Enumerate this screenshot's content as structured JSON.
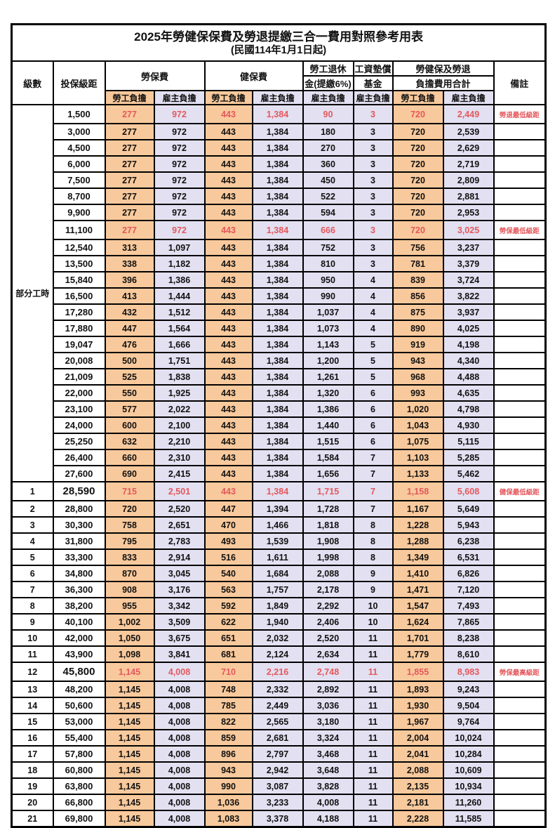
{
  "title": "2025年勞健保保費及勞退提繳三合一費用對照參考用表",
  "subtitle": "(民國114年1月1日起)",
  "header": {
    "level": "級數",
    "bracket": "投保級距",
    "labor_insurance": "勞保費",
    "health_insurance": "健保費",
    "pension_line1": "勞工退休",
    "pension_line2": "金(提繳6%)",
    "wage_fund_line1": "工資墊償",
    "wage_fund_line2": "基金",
    "total_line1": "勞健保及勞退",
    "total_line2": "負擔費用合計",
    "employee_label": "勞工負擔",
    "employer_label": "雇主負擔",
    "remark": "備註"
  },
  "colors": {
    "employee_bg": "#F8C99C",
    "employer_bg": "#E2E0F1",
    "highlight_red": "#E4585C",
    "border": "#000000"
  },
  "part_time_label": "部分工時",
  "part_time_rowspan": 23,
  "rows": [
    {
      "level": "",
      "bracket": "1,500",
      "values": [
        "277",
        "972",
        "443",
        "1,384",
        "90",
        "3",
        "720",
        "2,449"
      ],
      "remark": "勞退最低級距",
      "highlight": true,
      "big": false
    },
    {
      "level": "",
      "bracket": "3,000",
      "values": [
        "277",
        "972",
        "443",
        "1,384",
        "180",
        "3",
        "720",
        "2,539"
      ],
      "remark": "",
      "highlight": false,
      "big": false
    },
    {
      "level": "",
      "bracket": "4,500",
      "values": [
        "277",
        "972",
        "443",
        "1,384",
        "270",
        "3",
        "720",
        "2,629"
      ],
      "remark": "",
      "highlight": false,
      "big": false
    },
    {
      "level": "",
      "bracket": "6,000",
      "values": [
        "277",
        "972",
        "443",
        "1,384",
        "360",
        "3",
        "720",
        "2,719"
      ],
      "remark": "",
      "highlight": false,
      "big": false
    },
    {
      "level": "",
      "bracket": "7,500",
      "values": [
        "277",
        "972",
        "443",
        "1,384",
        "450",
        "3",
        "720",
        "2,809"
      ],
      "remark": "",
      "highlight": false,
      "big": false
    },
    {
      "level": "",
      "bracket": "8,700",
      "values": [
        "277",
        "972",
        "443",
        "1,384",
        "522",
        "3",
        "720",
        "2,881"
      ],
      "remark": "",
      "highlight": false,
      "big": false
    },
    {
      "level": "",
      "bracket": "9,900",
      "values": [
        "277",
        "972",
        "443",
        "1,384",
        "594",
        "3",
        "720",
        "2,953"
      ],
      "remark": "",
      "highlight": false,
      "big": false
    },
    {
      "level": "",
      "bracket": "11,100",
      "values": [
        "277",
        "972",
        "443",
        "1,384",
        "666",
        "3",
        "720",
        "3,025"
      ],
      "remark": "勞保最低級距",
      "highlight": true,
      "big": false
    },
    {
      "level": "",
      "bracket": "12,540",
      "values": [
        "313",
        "1,097",
        "443",
        "1,384",
        "752",
        "3",
        "756",
        "3,237"
      ],
      "remark": "",
      "highlight": false,
      "big": false
    },
    {
      "level": "",
      "bracket": "13,500",
      "values": [
        "338",
        "1,182",
        "443",
        "1,384",
        "810",
        "3",
        "781",
        "3,379"
      ],
      "remark": "",
      "highlight": false,
      "big": false
    },
    {
      "level": "",
      "bracket": "15,840",
      "values": [
        "396",
        "1,386",
        "443",
        "1,384",
        "950",
        "4",
        "839",
        "3,724"
      ],
      "remark": "",
      "highlight": false,
      "big": false
    },
    {
      "level": "",
      "bracket": "16,500",
      "values": [
        "413",
        "1,444",
        "443",
        "1,384",
        "990",
        "4",
        "856",
        "3,822"
      ],
      "remark": "",
      "highlight": false,
      "big": false
    },
    {
      "level": "",
      "bracket": "17,280",
      "values": [
        "432",
        "1,512",
        "443",
        "1,384",
        "1,037",
        "4",
        "875",
        "3,937"
      ],
      "remark": "",
      "highlight": false,
      "big": false
    },
    {
      "level": "",
      "bracket": "17,880",
      "values": [
        "447",
        "1,564",
        "443",
        "1,384",
        "1,073",
        "4",
        "890",
        "4,025"
      ],
      "remark": "",
      "highlight": false,
      "big": false
    },
    {
      "level": "",
      "bracket": "19,047",
      "values": [
        "476",
        "1,666",
        "443",
        "1,384",
        "1,143",
        "5",
        "919",
        "4,198"
      ],
      "remark": "",
      "highlight": false,
      "big": false
    },
    {
      "level": "",
      "bracket": "20,008",
      "values": [
        "500",
        "1,751",
        "443",
        "1,384",
        "1,200",
        "5",
        "943",
        "4,340"
      ],
      "remark": "",
      "highlight": false,
      "big": false
    },
    {
      "level": "",
      "bracket": "21,009",
      "values": [
        "525",
        "1,838",
        "443",
        "1,384",
        "1,261",
        "5",
        "968",
        "4,488"
      ],
      "remark": "",
      "highlight": false,
      "big": false
    },
    {
      "level": "",
      "bracket": "22,000",
      "values": [
        "550",
        "1,925",
        "443",
        "1,384",
        "1,320",
        "6",
        "993",
        "4,635"
      ],
      "remark": "",
      "highlight": false,
      "big": false
    },
    {
      "level": "",
      "bracket": "23,100",
      "values": [
        "577",
        "2,022",
        "443",
        "1,384",
        "1,386",
        "6",
        "1,020",
        "4,798"
      ],
      "remark": "",
      "highlight": false,
      "big": false
    },
    {
      "level": "",
      "bracket": "24,000",
      "values": [
        "600",
        "2,100",
        "443",
        "1,384",
        "1,440",
        "6",
        "1,043",
        "4,930"
      ],
      "remark": "",
      "highlight": false,
      "big": false
    },
    {
      "level": "",
      "bracket": "25,250",
      "values": [
        "632",
        "2,210",
        "443",
        "1,384",
        "1,515",
        "6",
        "1,075",
        "5,115"
      ],
      "remark": "",
      "highlight": false,
      "big": false
    },
    {
      "level": "",
      "bracket": "26,400",
      "values": [
        "660",
        "2,310",
        "443",
        "1,384",
        "1,584",
        "7",
        "1,103",
        "5,285"
      ],
      "remark": "",
      "highlight": false,
      "big": false
    },
    {
      "level": "",
      "bracket": "27,600",
      "values": [
        "690",
        "2,415",
        "443",
        "1,384",
        "1,656",
        "7",
        "1,133",
        "5,462"
      ],
      "remark": "",
      "highlight": false,
      "big": false
    },
    {
      "level": "1",
      "bracket": "28,590",
      "values": [
        "715",
        "2,501",
        "443",
        "1,384",
        "1,715",
        "7",
        "1,158",
        "5,608"
      ],
      "remark": "健保最低級距",
      "highlight": true,
      "big": true
    },
    {
      "level": "2",
      "bracket": "28,800",
      "values": [
        "720",
        "2,520",
        "447",
        "1,394",
        "1,728",
        "7",
        "1,167",
        "5,649"
      ],
      "remark": "",
      "highlight": false,
      "big": false
    },
    {
      "level": "3",
      "bracket": "30,300",
      "values": [
        "758",
        "2,651",
        "470",
        "1,466",
        "1,818",
        "8",
        "1,228",
        "5,943"
      ],
      "remark": "",
      "highlight": false,
      "big": false
    },
    {
      "level": "4",
      "bracket": "31,800",
      "values": [
        "795",
        "2,783",
        "493",
        "1,539",
        "1,908",
        "8",
        "1,288",
        "6,238"
      ],
      "remark": "",
      "highlight": false,
      "big": false
    },
    {
      "level": "5",
      "bracket": "33,300",
      "values": [
        "833",
        "2,914",
        "516",
        "1,611",
        "1,998",
        "8",
        "1,349",
        "6,531"
      ],
      "remark": "",
      "highlight": false,
      "big": false
    },
    {
      "level": "6",
      "bracket": "34,800",
      "values": [
        "870",
        "3,045",
        "540",
        "1,684",
        "2,088",
        "9",
        "1,410",
        "6,826"
      ],
      "remark": "",
      "highlight": false,
      "big": false
    },
    {
      "level": "7",
      "bracket": "36,300",
      "values": [
        "908",
        "3,176",
        "563",
        "1,757",
        "2,178",
        "9",
        "1,471",
        "7,120"
      ],
      "remark": "",
      "highlight": false,
      "big": false
    },
    {
      "level": "8",
      "bracket": "38,200",
      "values": [
        "955",
        "3,342",
        "592",
        "1,849",
        "2,292",
        "10",
        "1,547",
        "7,493"
      ],
      "remark": "",
      "highlight": false,
      "big": false
    },
    {
      "level": "9",
      "bracket": "40,100",
      "values": [
        "1,002",
        "3,509",
        "622",
        "1,940",
        "2,406",
        "10",
        "1,624",
        "7,865"
      ],
      "remark": "",
      "highlight": false,
      "big": false
    },
    {
      "level": "10",
      "bracket": "42,000",
      "values": [
        "1,050",
        "3,675",
        "651",
        "2,032",
        "2,520",
        "11",
        "1,701",
        "8,238"
      ],
      "remark": "",
      "highlight": false,
      "big": false
    },
    {
      "level": "11",
      "bracket": "43,900",
      "values": [
        "1,098",
        "3,841",
        "681",
        "2,124",
        "2,634",
        "11",
        "1,779",
        "8,610"
      ],
      "remark": "",
      "highlight": false,
      "big": false
    },
    {
      "level": "12",
      "bracket": "45,800",
      "values": [
        "1,145",
        "4,008",
        "710",
        "2,216",
        "2,748",
        "11",
        "1,855",
        "8,983"
      ],
      "remark": "勞保最高級距",
      "highlight": true,
      "big": true
    },
    {
      "level": "13",
      "bracket": "48,200",
      "values": [
        "1,145",
        "4,008",
        "748",
        "2,332",
        "2,892",
        "11",
        "1,893",
        "9,243"
      ],
      "remark": "",
      "highlight": false,
      "big": false
    },
    {
      "level": "14",
      "bracket": "50,600",
      "values": [
        "1,145",
        "4,008",
        "785",
        "2,449",
        "3,036",
        "11",
        "1,930",
        "9,504"
      ],
      "remark": "",
      "highlight": false,
      "big": false
    },
    {
      "level": "15",
      "bracket": "53,000",
      "values": [
        "1,145",
        "4,008",
        "822",
        "2,565",
        "3,180",
        "11",
        "1,967",
        "9,764"
      ],
      "remark": "",
      "highlight": false,
      "big": false
    },
    {
      "level": "16",
      "bracket": "55,400",
      "values": [
        "1,145",
        "4,008",
        "859",
        "2,681",
        "3,324",
        "11",
        "2,004",
        "10,024"
      ],
      "remark": "",
      "highlight": false,
      "big": false
    },
    {
      "level": "17",
      "bracket": "57,800",
      "values": [
        "1,145",
        "4,008",
        "896",
        "2,797",
        "3,468",
        "11",
        "2,041",
        "10,284"
      ],
      "remark": "",
      "highlight": false,
      "big": false
    },
    {
      "level": "18",
      "bracket": "60,800",
      "values": [
        "1,145",
        "4,008",
        "943",
        "2,942",
        "3,648",
        "11",
        "2,088",
        "10,609"
      ],
      "remark": "",
      "highlight": false,
      "big": false
    },
    {
      "level": "19",
      "bracket": "63,800",
      "values": [
        "1,145",
        "4,008",
        "990",
        "3,087",
        "3,828",
        "11",
        "2,135",
        "10,934"
      ],
      "remark": "",
      "highlight": false,
      "big": false
    },
    {
      "level": "20",
      "bracket": "66,800",
      "values": [
        "1,145",
        "4,008",
        "1,036",
        "3,233",
        "4,008",
        "11",
        "2,181",
        "11,260"
      ],
      "remark": "",
      "highlight": false,
      "big": false
    },
    {
      "level": "21",
      "bracket": "69,800",
      "values": [
        "1,145",
        "4,008",
        "1,083",
        "3,378",
        "4,188",
        "11",
        "2,228",
        "11,585"
      ],
      "remark": "",
      "highlight": false,
      "big": false
    }
  ]
}
